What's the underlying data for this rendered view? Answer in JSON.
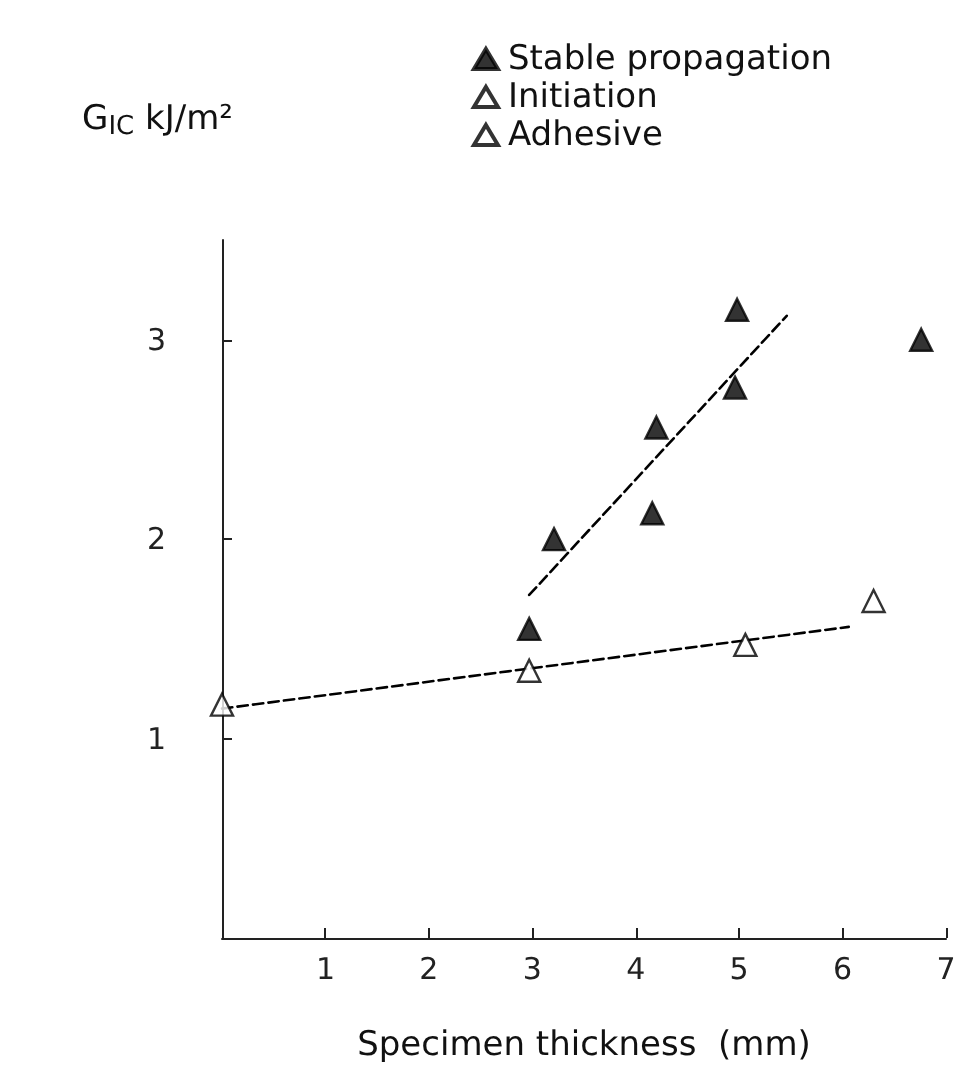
{
  "chart_data": {
    "type": "scatter",
    "ylabel": "G$_{IC}$ kJ/m²",
    "xlabel": "Specimen thickness  (mm)",
    "xlim": [
      0,
      7
    ],
    "xticks": [
      1,
      2,
      3,
      4,
      5,
      6,
      7
    ],
    "ylim": [
      0,
      3.5
    ],
    "yticks": [
      1,
      2,
      3
    ],
    "grid": false,
    "legend": "top right",
    "marker": "triangle",
    "series": [
      {
        "name": "Stable propagation",
        "color": "#000000",
        "x": [
          2.97,
          3.21,
          4.16,
          4.2,
          4.96,
          4.98,
          6.76
        ],
        "values": [
          1.55,
          2.0,
          2.13,
          2.56,
          2.76,
          3.15,
          3.0
        ]
      },
      {
        "name": "Initiation",
        "color": "#ffffff",
        "x": [
          2.97,
          5.06,
          6.3
        ],
        "values": [
          1.34,
          1.47,
          1.69
        ]
      },
      {
        "name": "Adhesive",
        "color": "#ffffff",
        "x": [
          0
        ],
        "values": [
          1.17
        ]
      },
      {
        "type": "line",
        "color": "#000000",
        "marker": "none",
        "line_style": "dashed",
        "x": [
          2.97,
          5.46
        ],
        "values": [
          1.72,
          3.12
        ]
      },
      {
        "type": "line",
        "color": "#000000",
        "marker": "none",
        "line_style": "dashed",
        "x": [
          0,
          6.06
        ],
        "values": [
          1.15,
          1.56
        ]
      }
    ]
  }
}
